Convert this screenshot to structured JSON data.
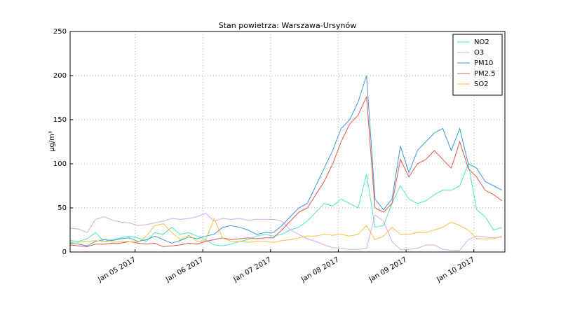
{
  "chart_data": {
    "type": "line",
    "title": "Stan powietrza: Warszawa-Ursynów",
    "ylabel": "µg/m³",
    "x": [
      "2017-01-04T01:00",
      "2017-01-04T04:00",
      "2017-01-04T07:00",
      "2017-01-04T10:00",
      "2017-01-04T13:00",
      "2017-01-04T16:00",
      "2017-01-04T19:00",
      "2017-01-04T22:00",
      "2017-01-05T01:00",
      "2017-01-05T04:00",
      "2017-01-05T07:00",
      "2017-01-05T10:00",
      "2017-01-05T13:00",
      "2017-01-05T16:00",
      "2017-01-05T19:00",
      "2017-01-05T22:00",
      "2017-01-06T01:00",
      "2017-01-06T04:00",
      "2017-01-06T07:00",
      "2017-01-06T10:00",
      "2017-01-06T13:00",
      "2017-01-06T16:00",
      "2017-01-06T19:00",
      "2017-01-06T22:00",
      "2017-01-07T01:00",
      "2017-01-07T04:00",
      "2017-01-07T07:00",
      "2017-01-07T10:00",
      "2017-01-07T13:00",
      "2017-01-07T16:00",
      "2017-01-07T19:00",
      "2017-01-07T22:00",
      "2017-01-08T01:00",
      "2017-01-08T04:00",
      "2017-01-08T07:00",
      "2017-01-08T10:00",
      "2017-01-08T13:00",
      "2017-01-08T16:00",
      "2017-01-08T19:00",
      "2017-01-08T22:00",
      "2017-01-09T01:00",
      "2017-01-09T04:00",
      "2017-01-09T07:00",
      "2017-01-09T10:00",
      "2017-01-09T13:00",
      "2017-01-09T16:00",
      "2017-01-09T19:00",
      "2017-01-09T22:00",
      "2017-01-10T01:00",
      "2017-01-10T04:00",
      "2017-01-10T07:00",
      "2017-01-10T10:00"
    ],
    "series": [
      {
        "name": "NO2",
        "color": "#4de8b8",
        "values": [
          13,
          12,
          15,
          22,
          12,
          14,
          16,
          18,
          16,
          12,
          22,
          20,
          28,
          20,
          22,
          18,
          14,
          8,
          7,
          9,
          12,
          14,
          18,
          20,
          18,
          20,
          25,
          28,
          35,
          45,
          55,
          52,
          60,
          55,
          50,
          88,
          28,
          30,
          55,
          75,
          60,
          55,
          58,
          65,
          70,
          70,
          75,
          100,
          48,
          40,
          25,
          28
        ]
      },
      {
        "name": "O3",
        "color": "#d9a6f2",
        "values": [
          27,
          26,
          22,
          37,
          40,
          36,
          34,
          33,
          30,
          31,
          33,
          35,
          38,
          37,
          38,
          40,
          44,
          35,
          38,
          37,
          38,
          36,
          37,
          37,
          37,
          35,
          25,
          20,
          15,
          12,
          8,
          5,
          4,
          3,
          3,
          4,
          42,
          35,
          12,
          3,
          3,
          4,
          8,
          8,
          3,
          2,
          2,
          14,
          18,
          17,
          16,
          17
        ]
      },
      {
        "name": "PM10",
        "color": "#3d9ad8",
        "values": [
          10,
          9,
          7,
          12,
          14,
          13,
          15,
          16,
          12,
          14,
          18,
          14,
          10,
          13,
          17,
          15,
          18,
          20,
          28,
          30,
          28,
          25,
          20,
          22,
          22,
          30,
          40,
          50,
          55,
          75,
          95,
          115,
          140,
          150,
          170,
          200,
          60,
          48,
          60,
          120,
          90,
          115,
          125,
          135,
          140,
          115,
          140,
          100,
          95,
          80,
          75,
          70
        ]
      },
      {
        "name": "PM2.5",
        "color": "#e2574a",
        "values": [
          8,
          7,
          6,
          9,
          9,
          10,
          10,
          12,
          10,
          9,
          10,
          6,
          7,
          8,
          10,
          9,
          12,
          14,
          16,
          14,
          15,
          16,
          15,
          16,
          16,
          25,
          35,
          45,
          50,
          65,
          80,
          100,
          125,
          145,
          155,
          176,
          50,
          45,
          55,
          105,
          85,
          100,
          105,
          115,
          105,
          95,
          125,
          95,
          85,
          70,
          65,
          58
        ]
      },
      {
        "name": "SO2",
        "color": "#f4c23f",
        "values": [
          11,
          11,
          12,
          13,
          12,
          11,
          12,
          12,
          11,
          18,
          30,
          32,
          22,
          14,
          19,
          12,
          13,
          38,
          16,
          12,
          12,
          11,
          12,
          12,
          11,
          13,
          14,
          16,
          18,
          18,
          20,
          19,
          20,
          18,
          20,
          30,
          14,
          18,
          28,
          20,
          20,
          22,
          22,
          25,
          28,
          34,
          30,
          25,
          15,
          15,
          15,
          18
        ]
      }
    ],
    "xlim": [
      "2017-01-04T01:00",
      "2017-01-10T11:00"
    ],
    "xticks": [
      {
        "value": "2017-01-05T00:00",
        "label": "Jan 05 2017"
      },
      {
        "value": "2017-01-06T00:00",
        "label": "Jan 06 2017"
      },
      {
        "value": "2017-01-07T00:00",
        "label": "Jan 07 2017"
      },
      {
        "value": "2017-01-08T00:00",
        "label": "Jan 08 2017"
      },
      {
        "value": "2017-01-09T00:00",
        "label": "Jan 09 2017"
      },
      {
        "value": "2017-01-10T00:00",
        "label": "Jan 10 2017"
      }
    ],
    "ylim": [
      0,
      250
    ],
    "yticks": [
      0,
      50,
      100,
      150,
      200,
      250
    ],
    "grid": true,
    "legend": "upper right"
  }
}
